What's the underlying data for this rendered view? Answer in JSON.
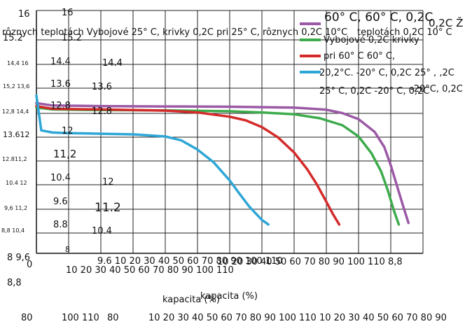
{
  "chart_data": {
    "type": "line",
    "title": "",
    "xlabel": "kapacita (%)",
    "ylabel": "",
    "xlim": [
      0,
      120
    ],
    "ylim": [
      8,
      16
    ],
    "grid": true,
    "legend_position": "top-right",
    "x_ticks": [
      0,
      10,
      20,
      30,
      40,
      50,
      60,
      70,
      80,
      90,
      100,
      110
    ],
    "y_ticks": [
      8,
      8.8,
      9.6,
      10.4,
      11.2,
      12,
      12.8,
      13.6,
      14.4,
      15.2,
      16
    ],
    "series": [
      {
        "name": "60° C, 60° C, 0,2C",
        "color": "#9b59a6",
        "x": [
          0,
          5,
          20,
          40,
          60,
          80,
          90,
          95,
          100,
          105,
          108,
          110,
          112,
          114,
          115.5
        ],
        "y": [
          12.95,
          12.87,
          12.85,
          12.84,
          12.83,
          12.8,
          12.73,
          12.62,
          12.42,
          12.0,
          11.5,
          10.9,
          10.2,
          9.5,
          9.0
        ]
      },
      {
        "name": "Vybojové 0,2C krivky",
        "color": "#3cab4b",
        "x": [
          0,
          5,
          20,
          40,
          60,
          70,
          80,
          88,
          95,
          100,
          104,
          107,
          109,
          111,
          112.5
        ],
        "y": [
          12.8,
          12.74,
          12.72,
          12.71,
          12.68,
          12.64,
          12.58,
          12.45,
          12.22,
          11.85,
          11.3,
          10.7,
          10.1,
          9.4,
          8.95
        ]
      },
      {
        "name": "pri 60° C 60° C,",
        "color": "#d42a2a",
        "x": [
          0,
          5,
          20,
          40,
          50,
          60,
          65,
          70,
          75,
          80,
          84,
          87,
          90,
          92,
          94
        ],
        "y": [
          12.85,
          12.76,
          12.74,
          12.7,
          12.64,
          12.5,
          12.38,
          12.16,
          11.82,
          11.32,
          10.78,
          10.28,
          9.7,
          9.3,
          8.95
        ]
      },
      {
        "name": "20,2°C. -20° C, 0,2C 25° , ,2C",
        "color": "#2ea6d6",
        "x": [
          0,
          1.5,
          5,
          10,
          20,
          30,
          40,
          45,
          50,
          55,
          60,
          63,
          66,
          70,
          72
        ],
        "y": [
          13.2,
          12.05,
          11.98,
          11.96,
          11.94,
          11.92,
          11.85,
          11.72,
          11.42,
          11.0,
          10.4,
          9.97,
          9.55,
          9.1,
          8.95
        ]
      }
    ],
    "annotations": [
      "rôznych teplotách Vybojové 25° C, krivky 0,2C pri 25° C, rôznych 0,2C 10°C",
      "teplotách 0,2C 10° C",
      "0,2C Ž",
      "25° C, 0,2C -20° C, 0,2C",
      "-20°C, 0,2C",
      "16",
      "15.2",
      "14.4",
      "13.6",
      "12.8",
      "12",
      "11,2",
      "10.4",
      "9.6",
      "8.8",
      "8",
      "16",
      "15.2",
      "14.4",
      "13.6",
      "12.8",
      "12",
      "11.2",
      "10.4",
      "14,4 16",
      "15,2 13,6",
      "12,8 14,4",
      "13.612",
      "12.811,2",
      "10.4 12",
      "9,6 11,2",
      "8,8 10,4",
      "8 9,6",
      "9.6 10 20 30 40 50 60 70 80 90 100 110",
      "10 20 30 40 50 60 70 80 90 100 110",
      "10 20 30 40 50 60 70 80 90 100 110 8,8",
      "8,8",
      "kapacita (%)",
      "80",
      "100 110",
      "80",
      "10 20 30 40 50 60 70 80 90 100 110 10 20 30 40 50 60 70 80 90"
    ]
  }
}
